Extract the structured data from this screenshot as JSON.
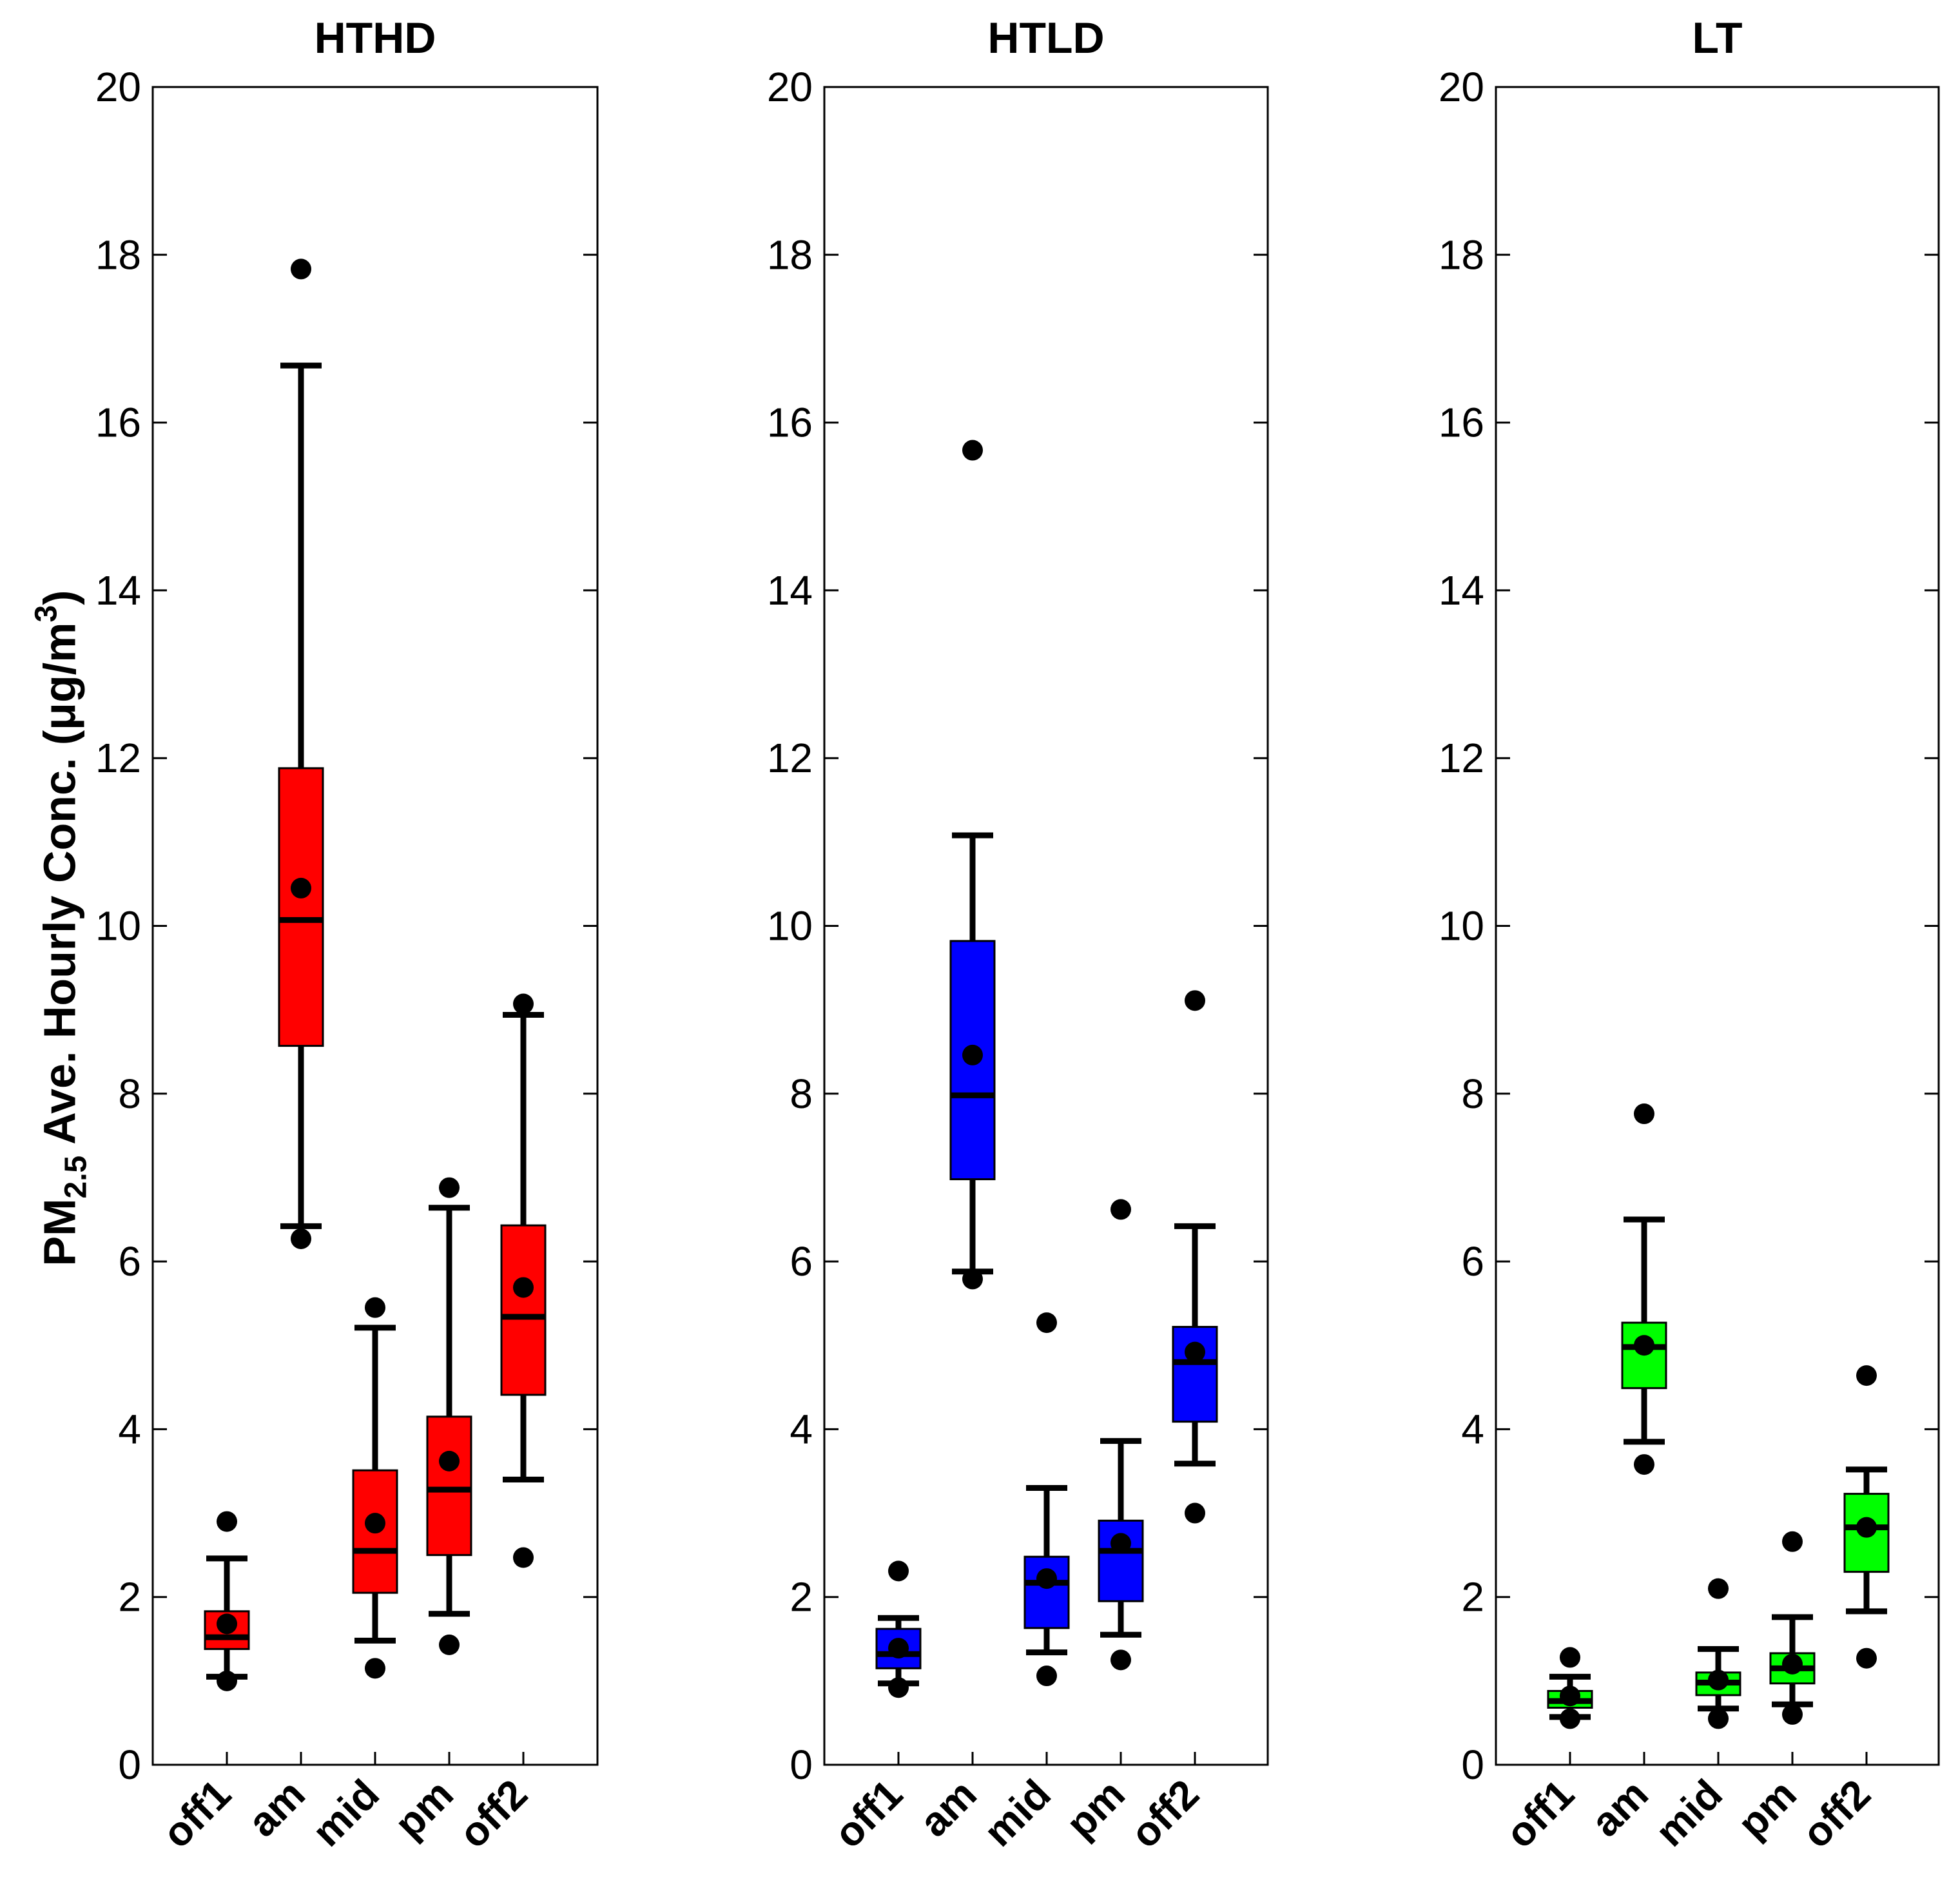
{
  "chart_data": {
    "type": "box",
    "ylabel": {
      "main": "PM",
      "sub": "2.5",
      "rest": " Ave. Hourly Conc. (μg/m",
      "sup": "3",
      "end": ")"
    },
    "ylim": [
      0,
      20
    ],
    "yticks": [
      "0",
      "2",
      "4",
      "6",
      "8",
      "10",
      "12",
      "14",
      "16",
      "18",
      "20"
    ],
    "categories": [
      "off1",
      "am",
      "mid",
      "pm",
      "off2"
    ],
    "panels": [
      {
        "title": "HTHD",
        "color": "#ff0000",
        "boxes": [
          {
            "category": "off1",
            "whisker_low": 1.05,
            "q1": 1.38,
            "median": 1.52,
            "q3": 1.83,
            "whisker_high": 2.46,
            "mean": 1.68,
            "outliers": [
              1.0,
              2.9
            ]
          },
          {
            "category": "am",
            "whisker_low": 6.42,
            "q1": 8.57,
            "median": 10.07,
            "q3": 11.88,
            "whisker_high": 16.68,
            "mean": 10.45,
            "outliers": [
              6.27,
              17.83
            ]
          },
          {
            "category": "mid",
            "whisker_low": 1.48,
            "q1": 2.05,
            "median": 2.55,
            "q3": 3.51,
            "whisker_high": 5.21,
            "mean": 2.88,
            "outliers": [
              1.15,
              5.45
            ]
          },
          {
            "category": "pm",
            "whisker_low": 1.8,
            "q1": 2.5,
            "median": 3.28,
            "q3": 4.15,
            "whisker_high": 6.64,
            "mean": 3.62,
            "outliers": [
              1.43,
              6.88
            ]
          },
          {
            "category": "off2",
            "whisker_low": 3.4,
            "q1": 4.41,
            "median": 5.34,
            "q3": 6.43,
            "whisker_high": 8.94,
            "mean": 5.69,
            "outliers": [
              2.47,
              9.07
            ]
          }
        ]
      },
      {
        "title": "HTLD",
        "color": "#0000ff",
        "boxes": [
          {
            "category": "off1",
            "whisker_low": 0.97,
            "q1": 1.15,
            "median": 1.32,
            "q3": 1.62,
            "whisker_high": 1.75,
            "mean": 1.39,
            "outliers": [
              0.92,
              2.31
            ]
          },
          {
            "category": "am",
            "whisker_low": 5.88,
            "q1": 6.98,
            "median": 7.98,
            "q3": 9.82,
            "whisker_high": 11.08,
            "mean": 8.46,
            "outliers": [
              5.79,
              15.67
            ]
          },
          {
            "category": "mid",
            "whisker_low": 1.34,
            "q1": 1.63,
            "median": 2.17,
            "q3": 2.48,
            "whisker_high": 3.3,
            "mean": 2.22,
            "outliers": [
              1.06,
              5.27
            ]
          },
          {
            "category": "pm",
            "whisker_low": 1.55,
            "q1": 1.95,
            "median": 2.55,
            "q3": 2.91,
            "whisker_high": 3.86,
            "mean": 2.64,
            "outliers": [
              1.25,
              6.62
            ]
          },
          {
            "category": "off2",
            "whisker_low": 3.59,
            "q1": 4.09,
            "median": 4.8,
            "q3": 5.22,
            "whisker_high": 6.42,
            "mean": 4.92,
            "outliers": [
              3.0,
              9.11
            ]
          }
        ]
      },
      {
        "title": "LT",
        "color": "#00ff00",
        "boxes": [
          {
            "category": "off1",
            "whisker_low": 0.57,
            "q1": 0.68,
            "median": 0.76,
            "q3": 0.88,
            "whisker_high": 1.05,
            "mean": 0.82,
            "outliers": [
              0.55,
              1.28
            ]
          },
          {
            "category": "am",
            "whisker_low": 3.85,
            "q1": 4.49,
            "median": 4.98,
            "q3": 5.27,
            "whisker_high": 6.5,
            "mean": 5.0,
            "outliers": [
              3.58,
              7.76
            ]
          },
          {
            "category": "mid",
            "whisker_low": 0.67,
            "q1": 0.83,
            "median": 0.98,
            "q3": 1.1,
            "whisker_high": 1.38,
            "mean": 1.01,
            "outliers": [
              0.55,
              2.1
            ]
          },
          {
            "category": "pm",
            "whisker_low": 0.72,
            "q1": 0.97,
            "median": 1.15,
            "q3": 1.33,
            "whisker_high": 1.76,
            "mean": 1.2,
            "outliers": [
              0.6,
              2.66
            ]
          },
          {
            "category": "off2",
            "whisker_low": 1.83,
            "q1": 2.3,
            "median": 2.83,
            "q3": 3.23,
            "whisker_high": 3.52,
            "mean": 2.83,
            "outliers": [
              1.27,
              4.64
            ]
          }
        ]
      }
    ]
  }
}
